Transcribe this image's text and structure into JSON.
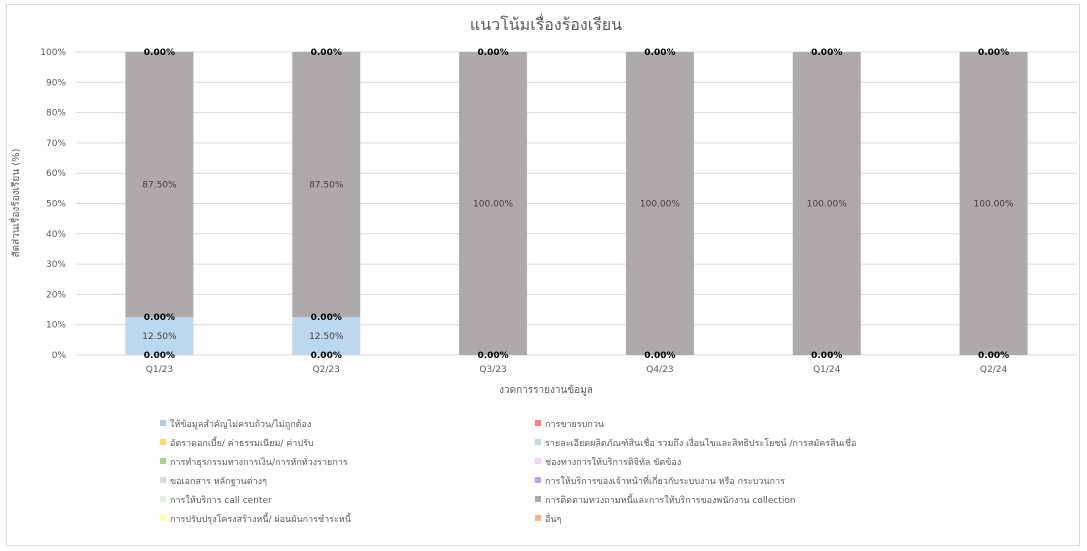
{
  "chart_data": {
    "type": "bar",
    "stacked": true,
    "normalized": true,
    "title": "แนวโน้มเรื่องร้องเรียน",
    "xlabel": "งวดการรายงานข้อมูล",
    "ylabel": "สัดส่วนเรื่องร้องเรียน (%)",
    "ylim": [
      0,
      100
    ],
    "y_ticks": [
      "0%",
      "10%",
      "20%",
      "30%",
      "40%",
      "50%",
      "60%",
      "70%",
      "80%",
      "90%",
      "100%"
    ],
    "grid": true,
    "legend_position": "bottom",
    "categories": [
      "Q1/23",
      "Q2/23",
      "Q3/23",
      "Q4/23",
      "Q1/24",
      "Q2/24"
    ],
    "series": [
      {
        "name": "ให้ข้อมูลสำคัญไม่ครบถ้วน/ไม่ถูกต้อง",
        "color": "#b4c7e7",
        "values": [
          0,
          0,
          0,
          0,
          0,
          0
        ]
      },
      {
        "name": "การขายรบกวน",
        "color": "#ff7c80",
        "values": [
          0,
          0,
          0,
          0,
          0,
          0
        ]
      },
      {
        "name": "อัตราดอกเบี้ย/ ค่าธรรมเนียม/ ค่าปรับ",
        "color": "#ffd966",
        "values": [
          0,
          0,
          0,
          0,
          0,
          0
        ]
      },
      {
        "name": "รายละเอียดผลิตภัณฑ์สินเชื่อ รวมถึง เงื่อนไขและสิทธิประโยชน์ /การสมัครสินเชื่อ",
        "color": "#bdd7ee",
        "values": [
          12.5,
          12.5,
          0,
          0,
          0,
          0
        ]
      },
      {
        "name": "การทำธุรกรรมทางการเงิน/การหักทั่วงรายการ",
        "color": "#a9d18e",
        "values": [
          0,
          0,
          0,
          0,
          0,
          0
        ]
      },
      {
        "name": "ช่องทางการให้บริการดิจิทัล ขัดข้อง",
        "color": "#ffccff",
        "values": [
          0,
          0,
          0,
          0,
          0,
          0
        ]
      },
      {
        "name": "ขอเอกสาร หลักฐานต่างๆ",
        "color": "#d9d9d9",
        "values": [
          0,
          0,
          0,
          0,
          0,
          0
        ]
      },
      {
        "name": "การให้บริการของเจ้าหน้าที่เกี่ยวกับระบบงาน หรือ กระบวนการ",
        "color": "#c9a0dc",
        "values": [
          0,
          0,
          0,
          0,
          0,
          0
        ]
      },
      {
        "name": "การให้บริการ call center",
        "color": "#e2efda",
        "values": [
          0,
          0,
          0,
          0,
          0,
          0
        ]
      },
      {
        "name": "การติดตามทวงถามหนี้และการให้บริการของพนักงาน collection",
        "color": "#aeaaaa",
        "values": [
          87.5,
          87.5,
          100,
          100,
          100,
          100
        ]
      },
      {
        "name": "การปรับปรุงโครงสร้างหนี้/ ผ่อนผันการชำระหนี้",
        "color": "#ffff99",
        "values": [
          0,
          0,
          0,
          0,
          0,
          0
        ]
      },
      {
        "name": "อื่นๆ",
        "color": "#f4b183",
        "values": [
          0,
          0,
          0,
          0,
          0,
          0
        ]
      }
    ],
    "bar_labels": [
      {
        "bottom": "0.00%",
        "middle": "12.50%",
        "junction": "0.00%",
        "upper": "87.50%",
        "top": "0.00%"
      },
      {
        "bottom": "0.00%",
        "middle": "12.50%",
        "junction": "0.00%",
        "upper": "87.50%",
        "top": "0.00%"
      },
      {
        "bottom": "0.00%",
        "middle": "",
        "junction": "",
        "upper": "100.00%",
        "top": "0.00%"
      },
      {
        "bottom": "0.00%",
        "middle": "",
        "junction": "",
        "upper": "100.00%",
        "top": "0.00%"
      },
      {
        "bottom": "0.00%",
        "middle": "",
        "junction": "",
        "upper": "100.00%",
        "top": "0.00%"
      },
      {
        "bottom": "0.00%",
        "middle": "",
        "junction": "",
        "upper": "100.00%",
        "top": "0.00%"
      }
    ]
  }
}
